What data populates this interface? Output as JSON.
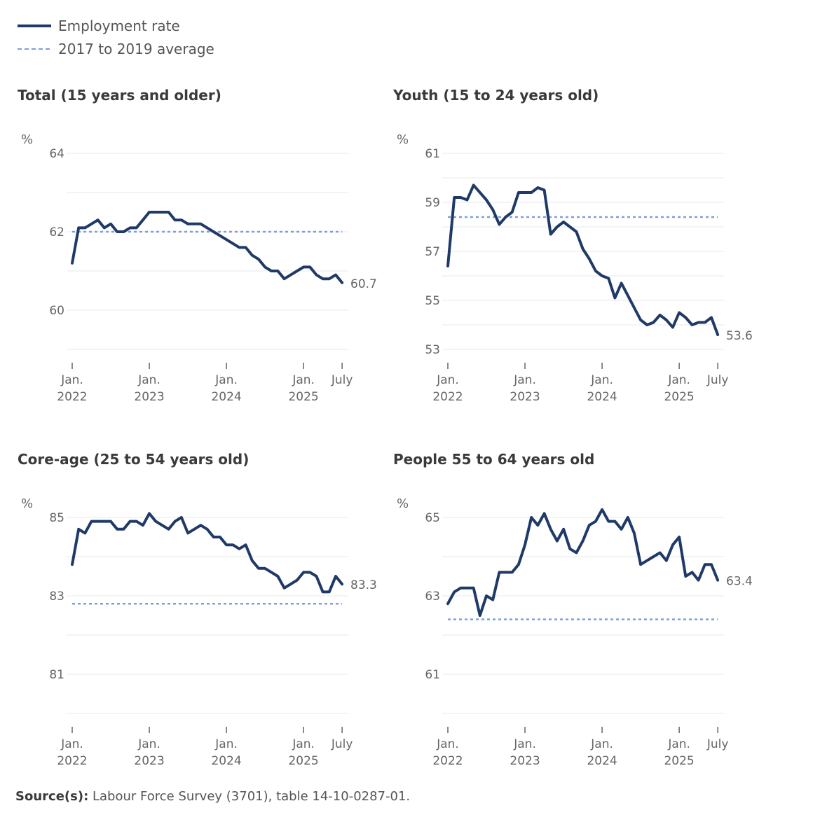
{
  "legend": {
    "series": "Employment rate",
    "average": "2017 to 2019 average"
  },
  "colors": {
    "series": "#1f3a68",
    "average": "#7b9fdb",
    "grid": "#e8e8e8"
  },
  "source": {
    "label": "Source(s):",
    "text": "Labour Force Survey (3701), table 14-10-0287-01."
  },
  "chart_data": [
    {
      "type": "line",
      "title": "Total (15 years and older)",
      "ylabel": "%",
      "ylim": [
        59,
        64
      ],
      "yticks": [
        60,
        62,
        64
      ],
      "xticks": [
        {
          "m": 0,
          "l1": "Jan.",
          "l2": "2022"
        },
        {
          "m": 12,
          "l1": "Jan.",
          "l2": "2023"
        },
        {
          "m": 24,
          "l1": "Jan.",
          "l2": "2024"
        },
        {
          "m": 36,
          "l1": "Jan.",
          "l2": "2025"
        },
        {
          "m": 42,
          "l1": "July",
          "l2": ""
        }
      ],
      "average": 62.0,
      "end_label": "60.7",
      "values": [
        61.2,
        62.1,
        62.1,
        62.2,
        62.3,
        62.1,
        62.2,
        62.0,
        62.0,
        62.1,
        62.1,
        62.3,
        62.5,
        62.5,
        62.5,
        62.5,
        62.3,
        62.3,
        62.2,
        62.2,
        62.2,
        62.1,
        62.0,
        61.9,
        61.8,
        61.7,
        61.6,
        61.6,
        61.4,
        61.3,
        61.1,
        61.0,
        61.0,
        60.8,
        60.9,
        61.0,
        61.1,
        61.1,
        60.9,
        60.8,
        60.8,
        60.9,
        60.7
      ]
    },
    {
      "type": "line",
      "title": "Youth (15 to 24 years old)",
      "ylabel": "%",
      "ylim": [
        53,
        61
      ],
      "yticks": [
        53,
        55,
        57,
        59,
        61
      ],
      "xticks": [
        {
          "m": 0,
          "l1": "Jan.",
          "l2": "2022"
        },
        {
          "m": 12,
          "l1": "Jan.",
          "l2": "2023"
        },
        {
          "m": 24,
          "l1": "Jan.",
          "l2": "2024"
        },
        {
          "m": 36,
          "l1": "Jan.",
          "l2": "2025"
        },
        {
          "m": 42,
          "l1": "July",
          "l2": ""
        }
      ],
      "average": 58.4,
      "end_label": "53.6",
      "values": [
        56.4,
        59.2,
        59.2,
        59.1,
        59.7,
        59.4,
        59.1,
        58.7,
        58.1,
        58.4,
        58.6,
        59.4,
        59.4,
        59.4,
        59.6,
        59.5,
        57.7,
        58.0,
        58.2,
        58.0,
        57.8,
        57.1,
        56.7,
        56.2,
        56.0,
        55.9,
        55.1,
        55.7,
        55.2,
        54.7,
        54.2,
        54.0,
        54.1,
        54.4,
        54.2,
        53.9,
        54.5,
        54.3,
        54.0,
        54.1,
        54.1,
        54.3,
        53.6
      ]
    },
    {
      "type": "line",
      "title": "Core-age (25 to 54 years old)",
      "ylabel": "%",
      "ylim": [
        80,
        85
      ],
      "yticks": [
        81,
        83,
        85
      ],
      "xticks": [
        {
          "m": 0,
          "l1": "Jan.",
          "l2": "2022"
        },
        {
          "m": 12,
          "l1": "Jan.",
          "l2": "2023"
        },
        {
          "m": 24,
          "l1": "Jan.",
          "l2": "2024"
        },
        {
          "m": 36,
          "l1": "Jan.",
          "l2": "2025"
        },
        {
          "m": 42,
          "l1": "July",
          "l2": ""
        }
      ],
      "average": 82.8,
      "end_label": "83.3",
      "values": [
        83.8,
        84.7,
        84.6,
        84.9,
        84.9,
        84.9,
        84.9,
        84.7,
        84.7,
        84.9,
        84.9,
        84.8,
        85.1,
        84.9,
        84.8,
        84.7,
        84.9,
        85.0,
        84.6,
        84.7,
        84.8,
        84.7,
        84.5,
        84.5,
        84.3,
        84.3,
        84.2,
        84.3,
        83.9,
        83.7,
        83.7,
        83.6,
        83.5,
        83.2,
        83.3,
        83.4,
        83.6,
        83.6,
        83.5,
        83.1,
        83.1,
        83.5,
        83.3
      ]
    },
    {
      "type": "line",
      "title": "People 55 to 64 years old",
      "ylabel": "%",
      "ylim": [
        60,
        65
      ],
      "yticks": [
        61,
        63,
        65
      ],
      "xticks": [
        {
          "m": 0,
          "l1": "Jan.",
          "l2": "2022"
        },
        {
          "m": 12,
          "l1": "Jan.",
          "l2": "2023"
        },
        {
          "m": 24,
          "l1": "Jan.",
          "l2": "2024"
        },
        {
          "m": 36,
          "l1": "Jan.",
          "l2": "2025"
        },
        {
          "m": 42,
          "l1": "July",
          "l2": ""
        }
      ],
      "average": 62.4,
      "end_label": "63.4",
      "values": [
        62.8,
        63.1,
        63.2,
        63.2,
        63.2,
        62.5,
        63.0,
        62.9,
        63.6,
        63.6,
        63.6,
        63.8,
        64.3,
        65.0,
        64.8,
        65.1,
        64.7,
        64.4,
        64.7,
        64.2,
        64.1,
        64.4,
        64.8,
        64.9,
        65.2,
        64.9,
        64.9,
        64.7,
        65.0,
        64.6,
        63.8,
        63.9,
        64.0,
        64.1,
        63.9,
        64.3,
        64.5,
        63.5,
        63.6,
        63.4,
        63.8,
        63.8,
        63.4
      ]
    }
  ]
}
